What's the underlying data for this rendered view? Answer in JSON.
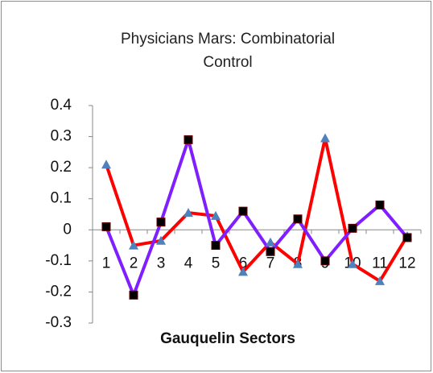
{
  "chart_data": {
    "type": "line",
    "title": "Physicians Mars: Combinatorial Control",
    "x_label": "Gauquelin Sectors",
    "categories": [
      "1",
      "2",
      "3",
      "4",
      "5",
      "6",
      "7",
      "8",
      "9",
      "10",
      "11",
      "12"
    ],
    "series": [
      {
        "color": "#ff0000",
        "marker": "triangle",
        "marker_color": "#4f81bd",
        "values": [
          0.21,
          -0.05,
          -0.035,
          0.055,
          0.045,
          -0.135,
          -0.04,
          -0.11,
          0.295,
          -0.11,
          -0.165,
          -0.02
        ]
      },
      {
        "color": "#7f1fff",
        "marker": "square",
        "marker_color": "#000000",
        "values": [
          0.01,
          -0.21,
          0.025,
          0.29,
          -0.05,
          0.06,
          -0.07,
          0.035,
          -0.1,
          0.005,
          0.08,
          -0.025
        ]
      }
    ],
    "ylim": [
      -0.3,
      0.4
    ],
    "yticks": [
      -0.3,
      -0.2,
      -0.1,
      0,
      0.1,
      0.2,
      0.3,
      0.4
    ],
    "grid": false
  }
}
